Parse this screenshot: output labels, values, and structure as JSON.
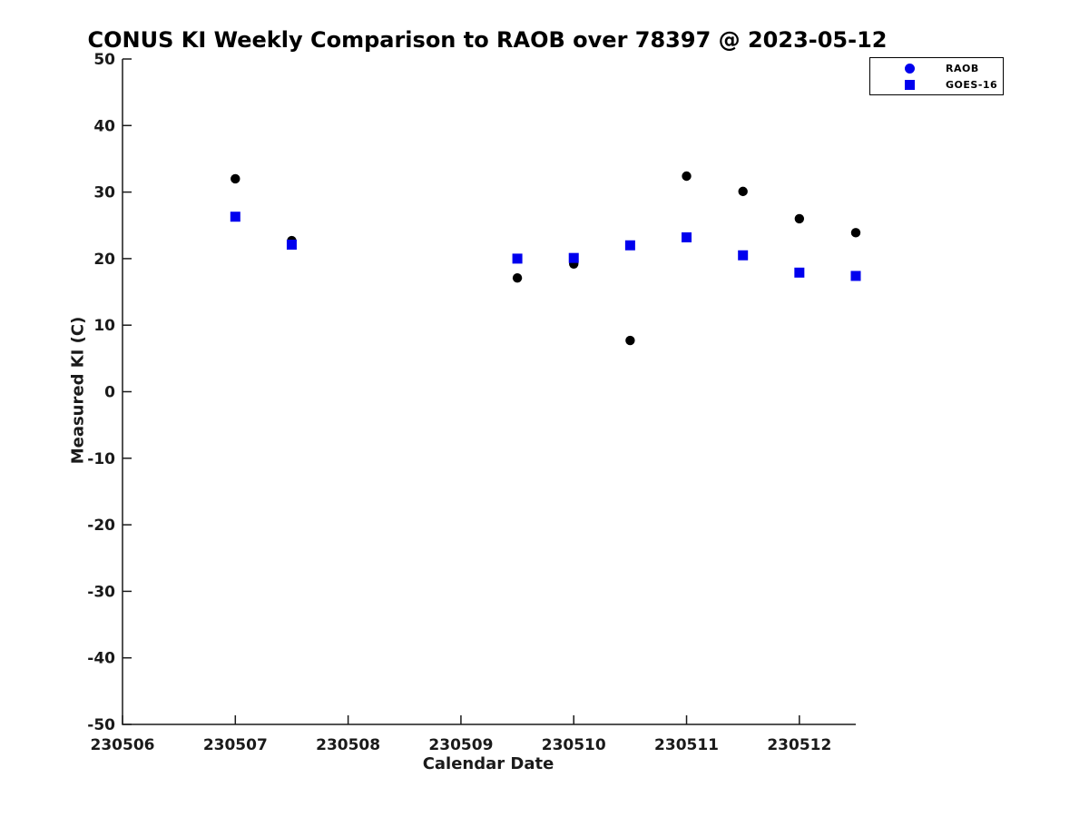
{
  "figure": {
    "background": "#ffffff",
    "axis_color": "#1a1a1a"
  },
  "chart_data": {
    "type": "scatter",
    "title": "CONUS KI Weekly Comparison to RAOB over 78397 @ 2023-05-12",
    "xlabel": "Calendar Date",
    "ylabel": "Measured KI (C)",
    "xlim": [
      230506,
      230512.5
    ],
    "ylim": [
      -50,
      50
    ],
    "xticks": [
      230506,
      230507,
      230508,
      230509,
      230510,
      230511,
      230512
    ],
    "yticks": [
      -50,
      -40,
      -30,
      -20,
      -10,
      0,
      10,
      20,
      30,
      40,
      50
    ],
    "grid": false,
    "legend_position": "top-right",
    "series": [
      {
        "name": "RAOB",
        "marker": "circle",
        "marker_color": "#000000",
        "legend_marker_color": "#0000ee",
        "x": [
          230507,
          230507.5,
          230509.5,
          230510,
          230510.5,
          230511,
          230511.5,
          230512,
          230512.5
        ],
        "y": [
          32,
          22.7,
          17.1,
          19.2,
          7.7,
          32.4,
          30.1,
          26,
          23.9
        ]
      },
      {
        "name": "GOES-16",
        "marker": "square",
        "marker_color": "#0000ee",
        "legend_marker_color": "#0000ee",
        "x": [
          230507,
          230507.5,
          230509.5,
          230510,
          230510.5,
          230511,
          230511.5,
          230512,
          230512.5
        ],
        "y": [
          26.3,
          22.1,
          20,
          20.1,
          22,
          23.2,
          20.5,
          17.9,
          17.4
        ]
      }
    ]
  }
}
